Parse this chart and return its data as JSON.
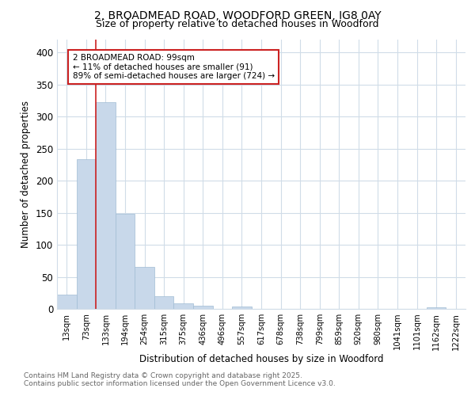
{
  "title_line1": "2, BROADMEAD ROAD, WOODFORD GREEN, IG8 0AY",
  "title_line2": "Size of property relative to detached houses in Woodford",
  "xlabel": "Distribution of detached houses by size in Woodford",
  "ylabel": "Number of detached properties",
  "bin_labels": [
    "13sqm",
    "73sqm",
    "133sqm",
    "194sqm",
    "254sqm",
    "315sqm",
    "375sqm",
    "436sqm",
    "496sqm",
    "557sqm",
    "617sqm",
    "678sqm",
    "738sqm",
    "799sqm",
    "859sqm",
    "920sqm",
    "980sqm",
    "1041sqm",
    "1101sqm",
    "1162sqm",
    "1222sqm"
  ],
  "bar_values": [
    22,
    233,
    323,
    148,
    65,
    20,
    9,
    5,
    0,
    4,
    0,
    0,
    0,
    0,
    0,
    0,
    0,
    0,
    0,
    3,
    0
  ],
  "bar_color": "#c8d8ea",
  "bar_edge_color": "#a0bcd4",
  "red_line_bin_index": 1,
  "annotation_title": "2 BROADMEAD ROAD: 99sqm",
  "annotation_line2": "← 11% of detached houses are smaller (91)",
  "annotation_line3": "89% of semi-detached houses are larger (724) →",
  "ylim": [
    0,
    420
  ],
  "yticks": [
    0,
    50,
    100,
    150,
    200,
    250,
    300,
    350,
    400
  ],
  "footer_line1": "Contains HM Land Registry data © Crown copyright and database right 2025.",
  "footer_line2": "Contains public sector information licensed under the Open Government Licence v3.0.",
  "bg_color": "#ffffff",
  "plot_bg_color": "#ffffff",
  "grid_color": "#d0dce8"
}
